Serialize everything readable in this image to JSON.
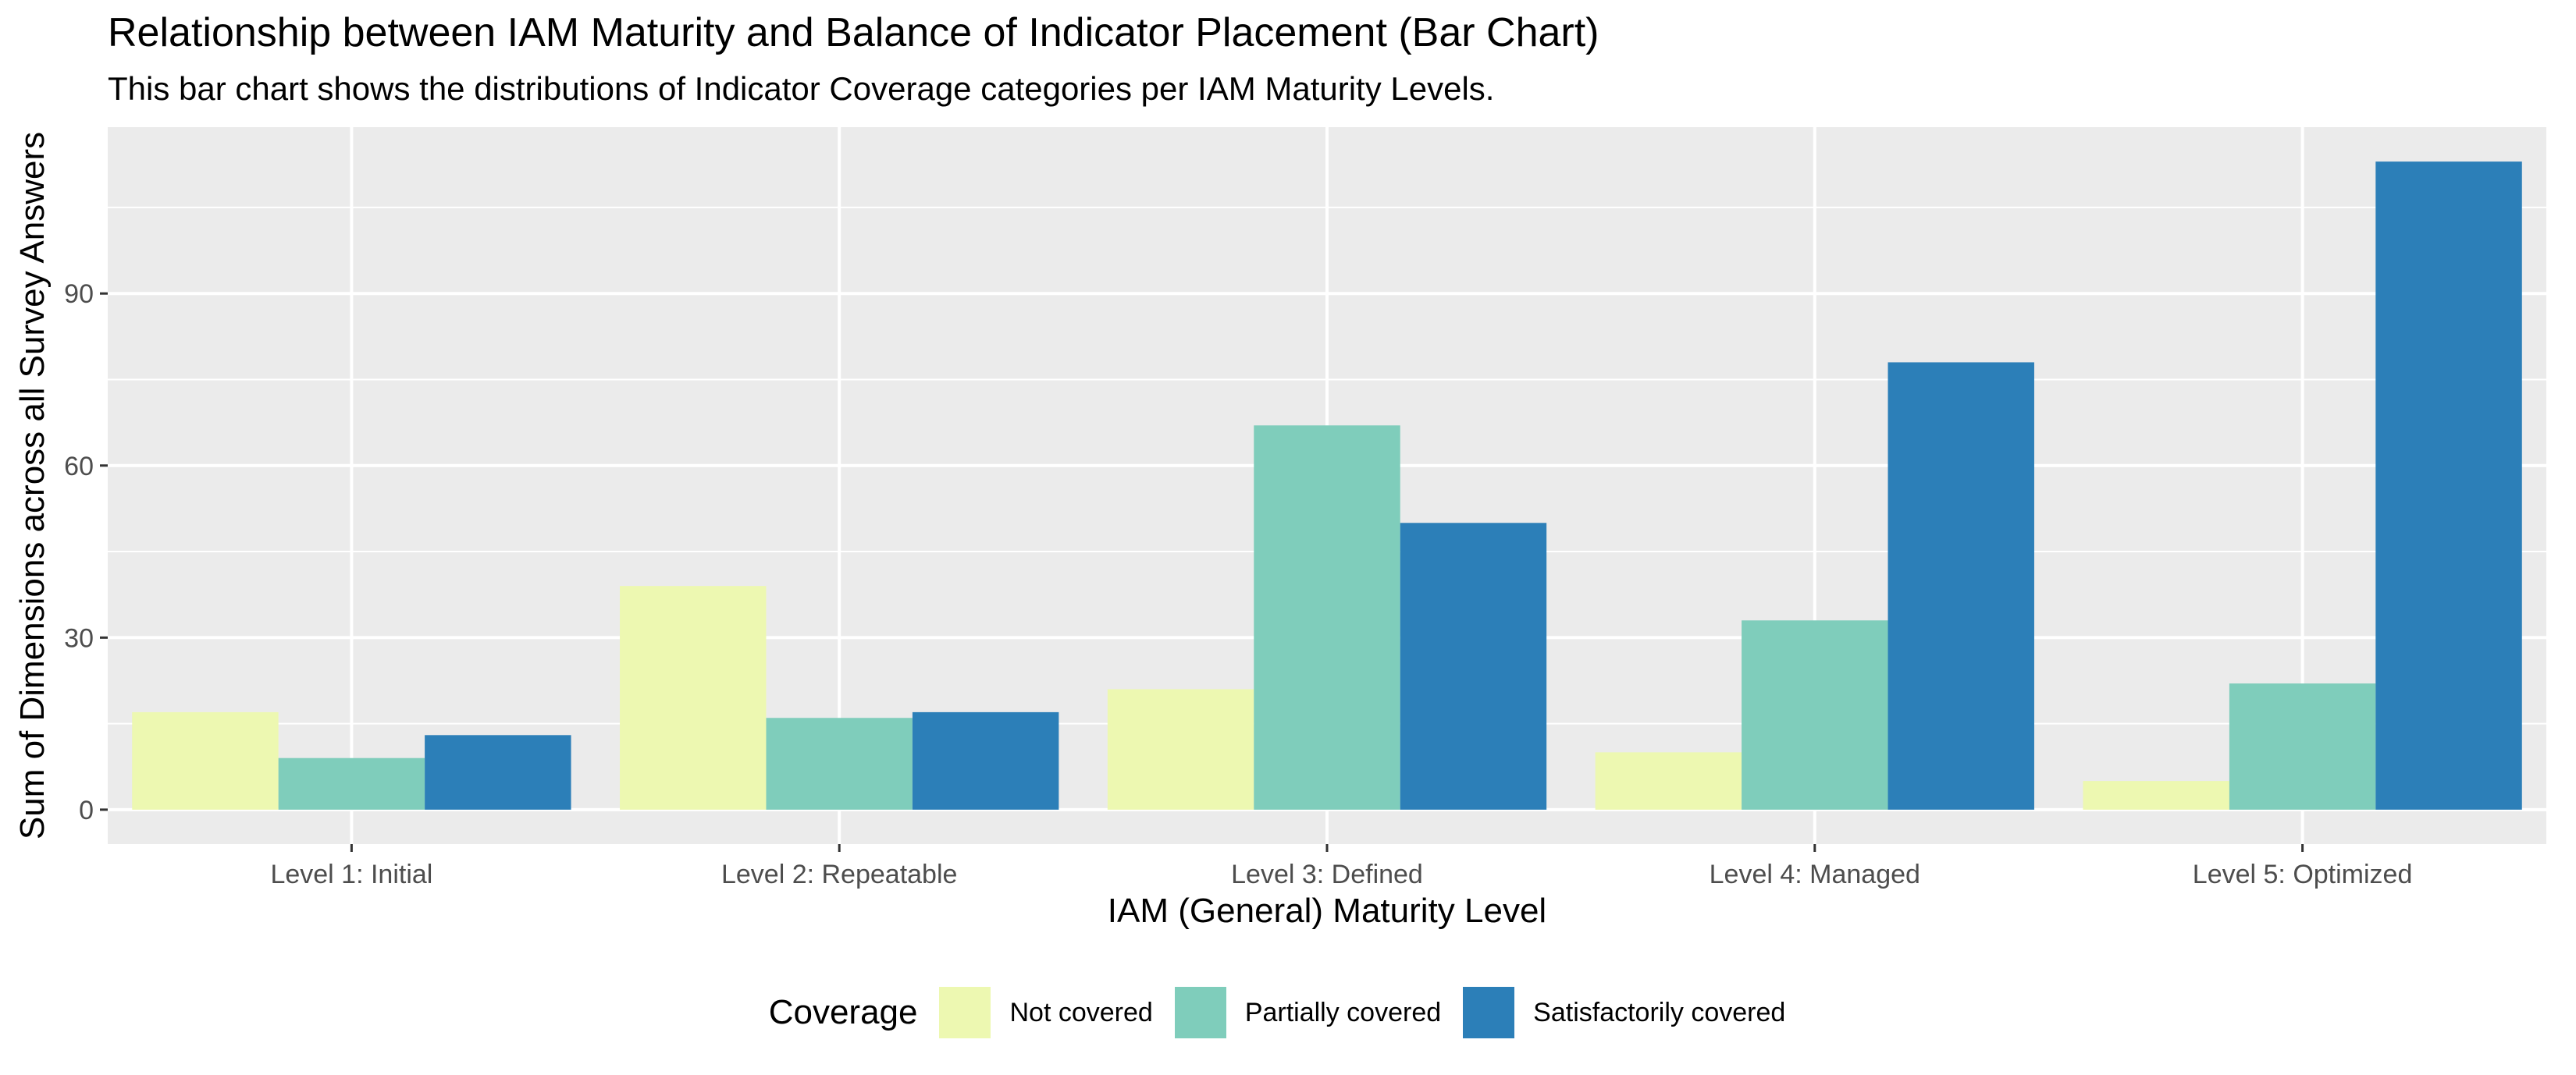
{
  "chart_data": {
    "type": "bar",
    "title": "Relationship between IAM Maturity and Balance of Indicator Placement (Bar Chart)",
    "subtitle": "This bar chart shows the distributions of Indicator Coverage categories per IAM Maturity Levels.",
    "xlabel": "IAM (General) Maturity Level",
    "ylabel": "Sum of Dimensions across all Survey Answers",
    "categories": [
      "Level 1: Initial",
      "Level 2: Repeatable",
      "Level 3: Defined",
      "Level 4: Managed",
      "Level 5: Optimized"
    ],
    "series": [
      {
        "name": "Not covered",
        "color": "#edf8b1",
        "values": [
          17,
          39,
          21,
          10,
          5
        ]
      },
      {
        "name": "Partially covered",
        "color": "#7fcdbb",
        "values": [
          9,
          16,
          67,
          33,
          22
        ]
      },
      {
        "name": "Satisfactorily covered",
        "color": "#2c7fb8",
        "values": [
          13,
          17,
          50,
          78,
          113
        ]
      }
    ],
    "ylim": [
      -6,
      119
    ],
    "yticks": [
      0,
      30,
      60,
      90
    ],
    "grid": true,
    "legend_title": "Coverage",
    "legend_position": "bottom",
    "panel_background": "#ebebeb",
    "gridline_color": "#ffffff"
  }
}
